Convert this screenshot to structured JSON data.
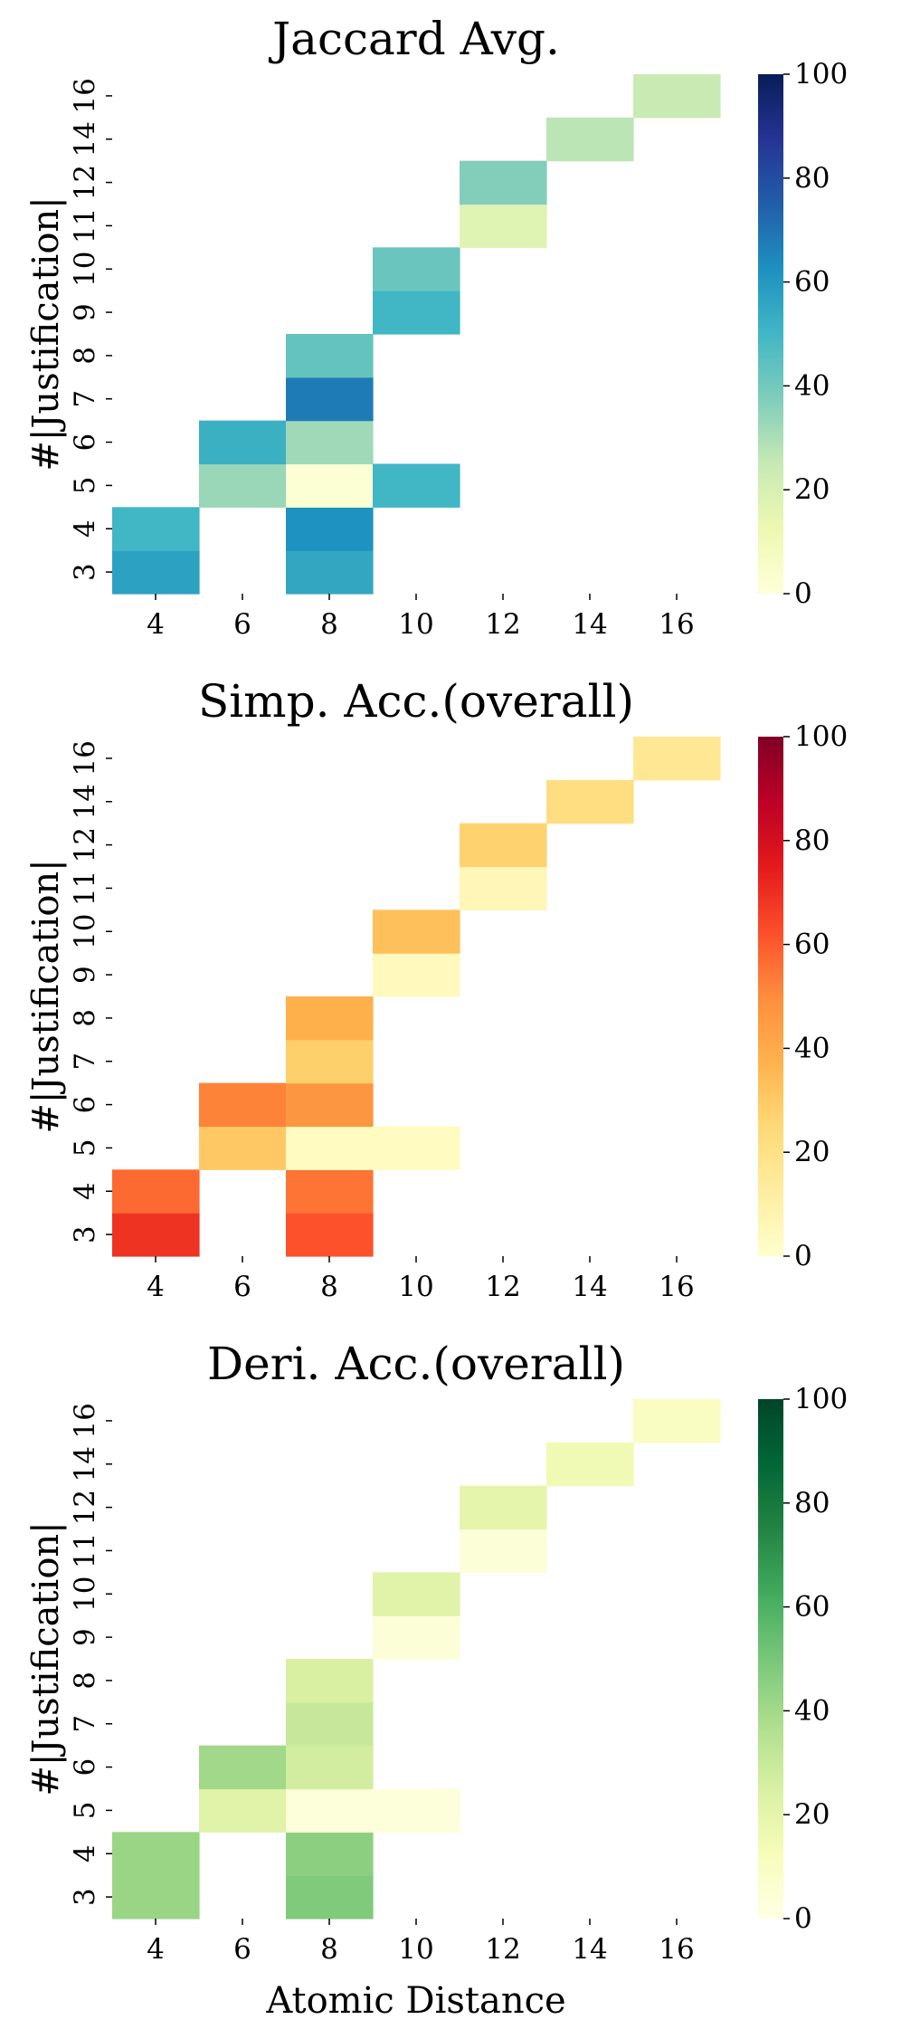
{
  "chart_data": [
    {
      "type": "heatmap",
      "title": "Jaccard Avg.",
      "ylabel": "#|Justification|",
      "xlabel": "",
      "x_tick_labels": [
        "4",
        "6",
        "8",
        "10",
        "12",
        "14",
        "16"
      ],
      "y_tick_labels": [
        "3",
        "4",
        "5",
        "6",
        "7",
        "8",
        "9",
        "10",
        "11",
        "12",
        "14",
        "16"
      ],
      "colormap": "YlGnBu",
      "vmin": 0,
      "vmax": 100,
      "colorbar_ticks": [
        "0",
        "20",
        "40",
        "60",
        "80",
        "100"
      ],
      "cells": [
        {
          "x": "4",
          "y": "3",
          "value": 57
        },
        {
          "x": "4",
          "y": "4",
          "value": 50
        },
        {
          "x": "6",
          "y": "5",
          "value": 33
        },
        {
          "x": "6",
          "y": "6",
          "value": 52
        },
        {
          "x": "8",
          "y": "3",
          "value": 55
        },
        {
          "x": "8",
          "y": "4",
          "value": 62
        },
        {
          "x": "8",
          "y": "5",
          "value": 2
        },
        {
          "x": "8",
          "y": "6",
          "value": 32
        },
        {
          "x": "8",
          "y": "7",
          "value": 68
        },
        {
          "x": "8",
          "y": "8",
          "value": 43
        },
        {
          "x": "10",
          "y": "5",
          "value": 50
        },
        {
          "x": "10",
          "y": "9",
          "value": 50
        },
        {
          "x": "10",
          "y": "10",
          "value": 42
        },
        {
          "x": "12",
          "y": "11",
          "value": 17
        },
        {
          "x": "12",
          "y": "12",
          "value": 37
        },
        {
          "x": "14",
          "y": "14",
          "value": 27
        },
        {
          "x": "16",
          "y": "16",
          "value": 24
        }
      ]
    },
    {
      "type": "heatmap",
      "title": "Simp. Acc.(overall)",
      "ylabel": "#|Justification|",
      "xlabel": "",
      "x_tick_labels": [
        "4",
        "6",
        "8",
        "10",
        "12",
        "14",
        "16"
      ],
      "y_tick_labels": [
        "3",
        "4",
        "5",
        "6",
        "7",
        "8",
        "9",
        "10",
        "11",
        "12",
        "14",
        "16"
      ],
      "colormap": "YlOrRd",
      "vmin": 0,
      "vmax": 100,
      "colorbar_ticks": [
        "0",
        "20",
        "40",
        "60",
        "80",
        "100"
      ],
      "cells": [
        {
          "x": "4",
          "y": "3",
          "value": 69
        },
        {
          "x": "4",
          "y": "4",
          "value": 57
        },
        {
          "x": "6",
          "y": "5",
          "value": 30
        },
        {
          "x": "6",
          "y": "6",
          "value": 52
        },
        {
          "x": "8",
          "y": "3",
          "value": 62
        },
        {
          "x": "8",
          "y": "4",
          "value": 55
        },
        {
          "x": "8",
          "y": "5",
          "value": 3
        },
        {
          "x": "8",
          "y": "6",
          "value": 47
        },
        {
          "x": "8",
          "y": "7",
          "value": 28
        },
        {
          "x": "8",
          "y": "8",
          "value": 38
        },
        {
          "x": "10",
          "y": "5",
          "value": 3
        },
        {
          "x": "10",
          "y": "9",
          "value": 4
        },
        {
          "x": "10",
          "y": "10",
          "value": 33
        },
        {
          "x": "12",
          "y": "11",
          "value": 6
        },
        {
          "x": "12",
          "y": "12",
          "value": 27
        },
        {
          "x": "14",
          "y": "14",
          "value": 22
        },
        {
          "x": "16",
          "y": "16",
          "value": 16
        }
      ]
    },
    {
      "type": "heatmap",
      "title": "Deri. Acc.(overall)",
      "ylabel": "#|Justification|",
      "xlabel": "Atomic Distance",
      "x_tick_labels": [
        "4",
        "6",
        "8",
        "10",
        "12",
        "14",
        "16"
      ],
      "y_tick_labels": [
        "3",
        "4",
        "5",
        "6",
        "7",
        "8",
        "9",
        "10",
        "11",
        "12",
        "14",
        "16"
      ],
      "colormap": "YlGn",
      "vmin": 0,
      "vmax": 100,
      "colorbar_ticks": [
        "0",
        "20",
        "40",
        "60",
        "80",
        "100"
      ],
      "cells": [
        {
          "x": "4",
          "y": "3",
          "value": 42
        },
        {
          "x": "4",
          "y": "4",
          "value": 42
        },
        {
          "x": "6",
          "y": "5",
          "value": 22
        },
        {
          "x": "6",
          "y": "6",
          "value": 40
        },
        {
          "x": "8",
          "y": "3",
          "value": 48
        },
        {
          "x": "8",
          "y": "4",
          "value": 45
        },
        {
          "x": "8",
          "y": "5",
          "value": 3
        },
        {
          "x": "8",
          "y": "6",
          "value": 27
        },
        {
          "x": "8",
          "y": "7",
          "value": 30
        },
        {
          "x": "8",
          "y": "8",
          "value": 25
        },
        {
          "x": "10",
          "y": "5",
          "value": 3
        },
        {
          "x": "10",
          "y": "9",
          "value": 4
        },
        {
          "x": "10",
          "y": "10",
          "value": 22
        },
        {
          "x": "12",
          "y": "11",
          "value": 4
        },
        {
          "x": "12",
          "y": "12",
          "value": 20
        },
        {
          "x": "14",
          "y": "14",
          "value": 15
        },
        {
          "x": "16",
          "y": "16",
          "value": 10
        }
      ]
    }
  ]
}
